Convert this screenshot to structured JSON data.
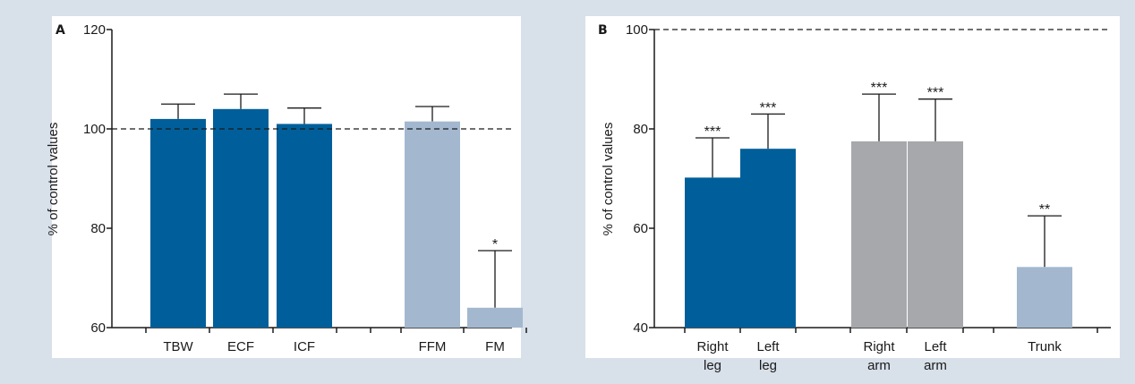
{
  "figure": {
    "background": "#d8e0ea",
    "plot_background": "#ffffff"
  },
  "chart_data": [
    {
      "type": "bar",
      "panel": "A",
      "ylabel": "% of control values",
      "ylim": [
        60,
        120
      ],
      "yticks": [
        60,
        80,
        100,
        120
      ],
      "reference_line": 100,
      "reference_style": "dashed",
      "grid": false,
      "groups": [
        {
          "categories": [
            "TBW",
            "ECF",
            "ICF"
          ],
          "values": [
            102,
            104,
            101
          ],
          "errors": [
            3,
            3,
            3.2
          ],
          "significance": [
            "",
            "",
            ""
          ],
          "color": "#005f9a"
        },
        {
          "categories": [
            "FFM",
            "FM"
          ],
          "values": [
            101.5,
            64
          ],
          "errors": [
            3,
            11.5
          ],
          "significance": [
            "",
            "*"
          ],
          "color": "#a3b8cf"
        }
      ]
    },
    {
      "type": "bar",
      "panel": "B",
      "ylabel": "% of control values",
      "ylim": [
        40,
        100
      ],
      "yticks": [
        40,
        60,
        80,
        100
      ],
      "reference_line": 100,
      "reference_style": "dashed",
      "grid": false,
      "groups": [
        {
          "categories": [
            [
              "Right",
              "leg"
            ],
            [
              "Left",
              "leg"
            ]
          ],
          "values": [
            70.2,
            76
          ],
          "errors": [
            8,
            7
          ],
          "significance": [
            "***",
            "***"
          ],
          "color": "#005f9a"
        },
        {
          "categories": [
            [
              "Right",
              "arm"
            ],
            [
              "Left",
              "arm"
            ]
          ],
          "values": [
            77.5,
            77.5
          ],
          "errors": [
            9.5,
            8.5
          ],
          "significance": [
            "***",
            "***"
          ],
          "color": "#a7a8ab"
        },
        {
          "categories": [
            [
              "Trunk"
            ]
          ],
          "values": [
            52.2
          ],
          "errors": [
            10.3
          ],
          "significance": [
            "**"
          ],
          "color": "#a3b8cf"
        }
      ]
    }
  ]
}
